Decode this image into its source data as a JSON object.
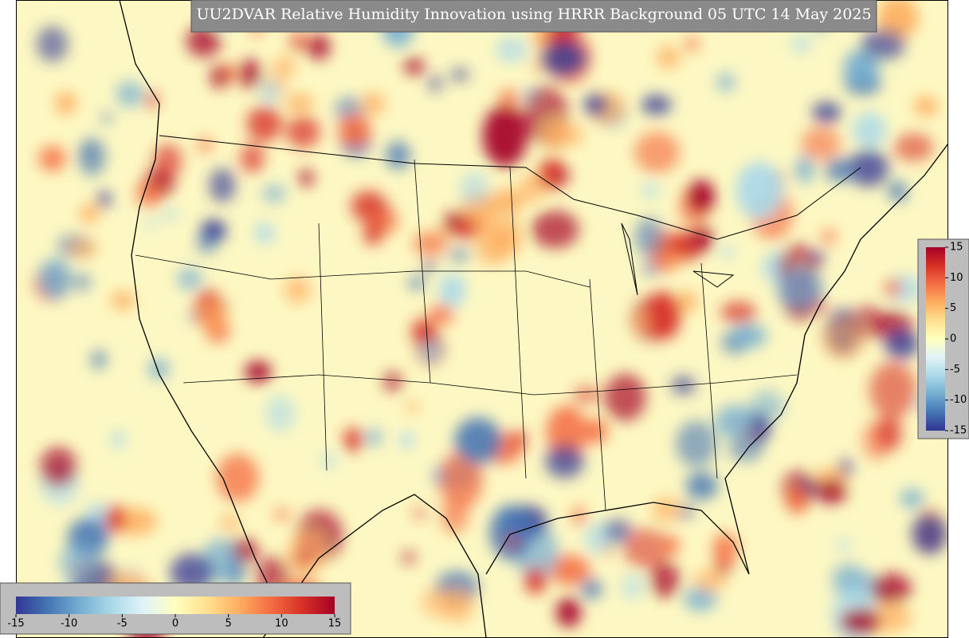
{
  "title": "UU2DVAR Relative Humidity Innovation using HRRR Background 05 UTC 14 May 2025",
  "colormap": [
    "#313695",
    "#4575b4",
    "#74add1",
    "#abd9e9",
    "#e0f3f8",
    "#ffffbf",
    "#fee090",
    "#fdae61",
    "#f46d43",
    "#d73027",
    "#a50026"
  ],
  "colorbar_vertical": {
    "ticks": [
      15,
      10,
      5,
      0,
      -5,
      -10,
      -15
    ]
  },
  "colorbar_horizontal": {
    "ticks": [
      -15,
      -10,
      -5,
      0,
      5,
      10,
      15
    ]
  }
}
